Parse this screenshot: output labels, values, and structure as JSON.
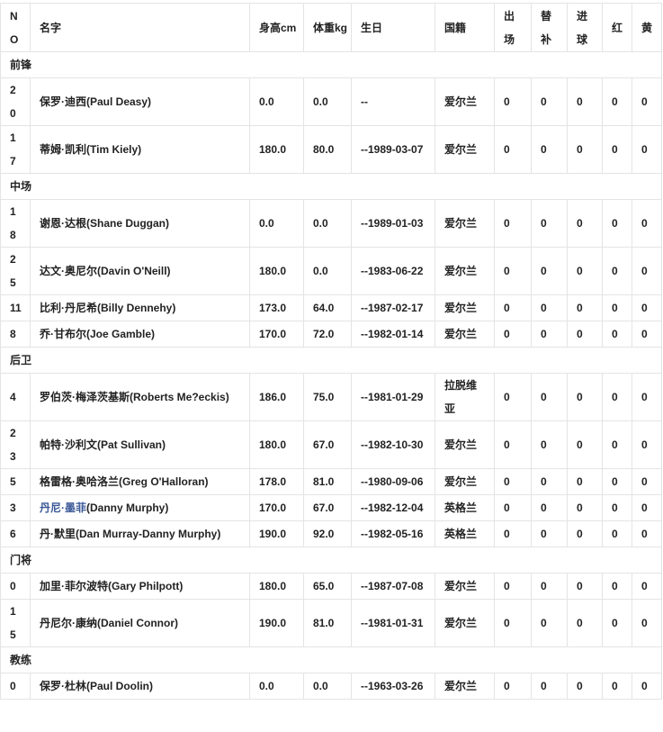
{
  "headers": [
    "NO",
    "名字",
    "身高cm",
    "体重kg",
    "生日",
    "国籍",
    "出场",
    "替补",
    "进球",
    "红",
    "黄"
  ],
  "link_color": "#3b5998",
  "sections": [
    {
      "title": "前锋",
      "players": [
        {
          "no": "20",
          "name": "保罗·迪西(Paul Deasy)",
          "height": "0.0",
          "weight": "0.0",
          "birthday": "--",
          "nation": "爱尔兰",
          "apps": "0",
          "subs": "0",
          "goals": "0",
          "red": "0",
          "yellow": "0"
        },
        {
          "no": "17",
          "name": "蒂姆·凯利(Tim Kiely)",
          "height": "180.0",
          "weight": "80.0",
          "birthday": "--1989-03-07",
          "nation": "爱尔兰",
          "apps": "0",
          "subs": "0",
          "goals": "0",
          "red": "0",
          "yellow": "0"
        }
      ]
    },
    {
      "title": "中场",
      "players": [
        {
          "no": "18",
          "name": "谢恩·达根(Shane Duggan)",
          "height": "0.0",
          "weight": "0.0",
          "birthday": "--1989-01-03",
          "nation": "爱尔兰",
          "apps": "0",
          "subs": "0",
          "goals": "0",
          "red": "0",
          "yellow": "0"
        },
        {
          "no": "25",
          "name": "达文·奥尼尔(Davin O'Neill)",
          "height": "180.0",
          "weight": "0.0",
          "birthday": "--1983-06-22",
          "nation": "爱尔兰",
          "apps": "0",
          "subs": "0",
          "goals": "0",
          "red": "0",
          "yellow": "0"
        },
        {
          "no": "11",
          "name": "比利·丹尼希(Billy Dennehy)",
          "height": "173.0",
          "weight": "64.0",
          "birthday": "--1987-02-17",
          "nation": "爱尔兰",
          "apps": "0",
          "subs": "0",
          "goals": "0",
          "red": "0",
          "yellow": "0"
        },
        {
          "no": "8",
          "name": "乔·甘布尔(Joe Gamble)",
          "height": "170.0",
          "weight": "72.0",
          "birthday": "--1982-01-14",
          "nation": "爱尔兰",
          "apps": "0",
          "subs": "0",
          "goals": "0",
          "red": "0",
          "yellow": "0"
        }
      ]
    },
    {
      "title": "后卫",
      "players": [
        {
          "no": "4",
          "name": "罗伯茨·梅泽茨基斯(Roberts Me?eckis)",
          "height": "186.0",
          "weight": "75.0",
          "birthday": "--1981-01-29",
          "nation": "拉脱维亚",
          "apps": "0",
          "subs": "0",
          "goals": "0",
          "red": "0",
          "yellow": "0"
        },
        {
          "no": "23",
          "name": "帕特·沙利文(Pat Sullivan)",
          "height": "180.0",
          "weight": "67.0",
          "birthday": "--1982-10-30",
          "nation": "爱尔兰",
          "apps": "0",
          "subs": "0",
          "goals": "0",
          "red": "0",
          "yellow": "0"
        },
        {
          "no": "5",
          "name": "格雷格·奥哈洛兰(Greg O'Halloran)",
          "height": "178.0",
          "weight": "81.0",
          "birthday": "--1980-09-06",
          "nation": "爱尔兰",
          "apps": "0",
          "subs": "0",
          "goals": "0",
          "red": "0",
          "yellow": "0"
        },
        {
          "no": "3",
          "name_link": "丹尼·墨菲",
          "name": "(Danny Murphy)",
          "height": "170.0",
          "weight": "67.0",
          "birthday": "--1982-12-04",
          "nation": "英格兰",
          "apps": "0",
          "subs": "0",
          "goals": "0",
          "red": "0",
          "yellow": "0"
        },
        {
          "no": "6",
          "name": "丹·默里(Dan Murray-Danny Murphy)",
          "height": "190.0",
          "weight": "92.0",
          "birthday": "--1982-05-16",
          "nation": "英格兰",
          "apps": "0",
          "subs": "0",
          "goals": "0",
          "red": "0",
          "yellow": "0"
        }
      ]
    },
    {
      "title": "门将",
      "players": [
        {
          "no": "0",
          "name": "加里·菲尔波特(Gary Philpott)",
          "height": "180.0",
          "weight": "65.0",
          "birthday": "--1987-07-08",
          "nation": "爱尔兰",
          "apps": "0",
          "subs": "0",
          "goals": "0",
          "red": "0",
          "yellow": "0"
        },
        {
          "no": "15",
          "name": "丹尼尔·康纳(Daniel Connor)",
          "height": "190.0",
          "weight": "81.0",
          "birthday": "--1981-01-31",
          "nation": "爱尔兰",
          "apps": "0",
          "subs": "0",
          "goals": "0",
          "red": "0",
          "yellow": "0"
        }
      ]
    },
    {
      "title": "教练",
      "players": [
        {
          "no": "0",
          "name": "保罗·杜林(Paul Doolin)",
          "height": "0.0",
          "weight": "0.0",
          "birthday": "--1963-03-26",
          "nation": "爱尔兰",
          "apps": "0",
          "subs": "0",
          "goals": "0",
          "red": "0",
          "yellow": "0"
        }
      ]
    }
  ]
}
